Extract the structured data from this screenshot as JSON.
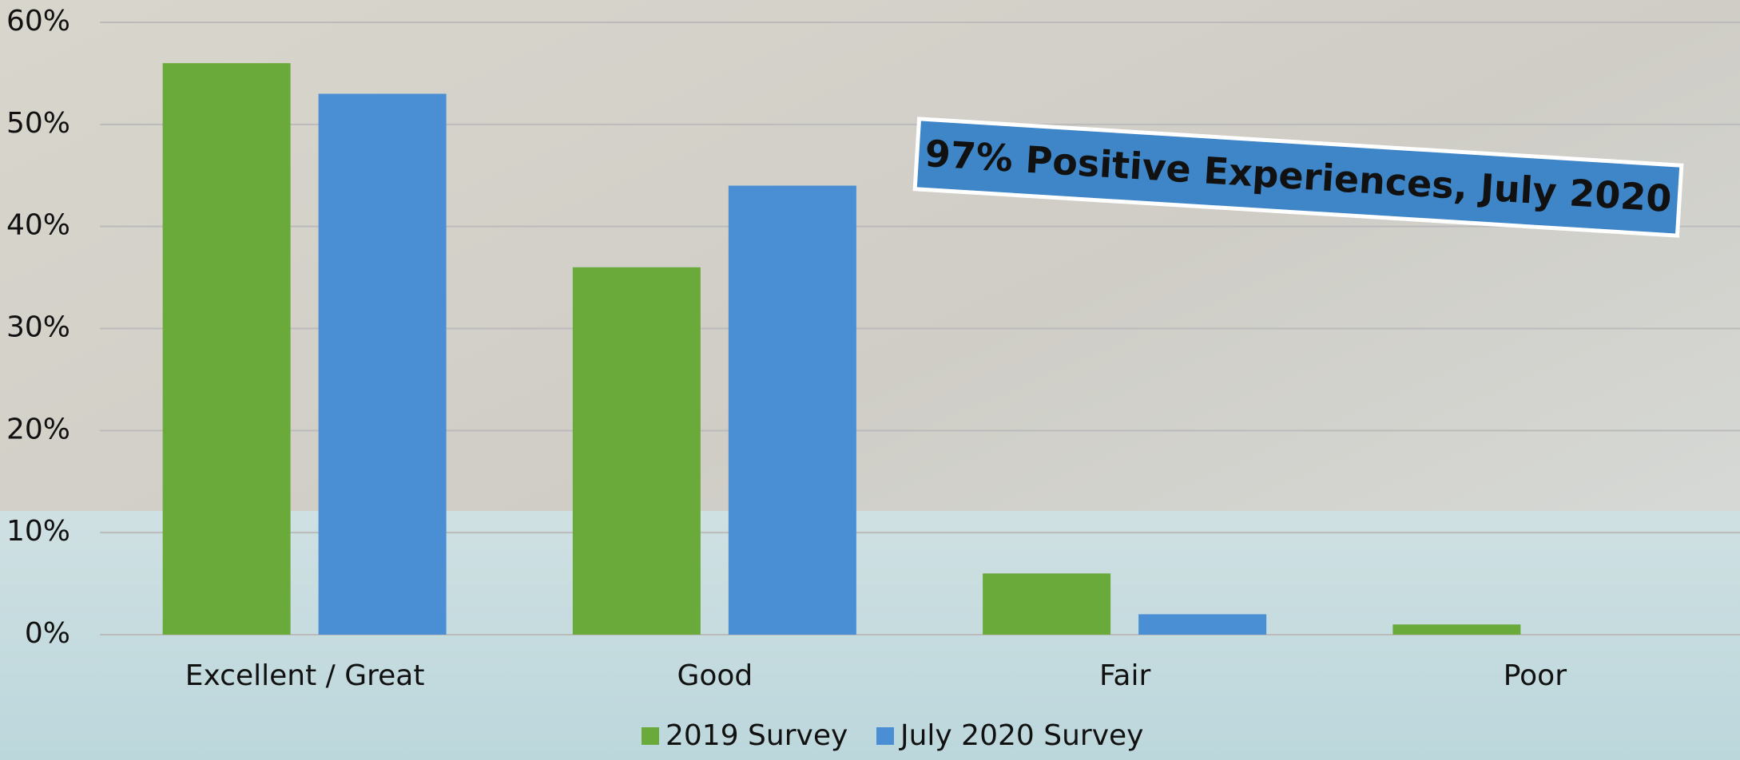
{
  "chart_data": {
    "type": "bar",
    "categories": [
      "Excellent / Great",
      "Good",
      "Fair",
      "Poor"
    ],
    "series": [
      {
        "name": "2019 Survey",
        "color": "#6aaa3a",
        "values": [
          56,
          36,
          6,
          1
        ]
      },
      {
        "name": "July 2020 Survey",
        "color": "#4a8fd4",
        "values": [
          53,
          44,
          2,
          0
        ]
      }
    ],
    "ylim": [
      0,
      60
    ],
    "yticks": [
      {
        "value": 0,
        "label": "0%"
      },
      {
        "value": 10,
        "label": "10%"
      },
      {
        "value": 20,
        "label": "20%"
      },
      {
        "value": 30,
        "label": "30%"
      },
      {
        "value": 40,
        "label": "40%"
      },
      {
        "value": 50,
        "label": "50%"
      },
      {
        "value": 60,
        "label": "60%"
      }
    ],
    "grid": true,
    "annotation": "97% Positive Experiences, July 2020"
  }
}
